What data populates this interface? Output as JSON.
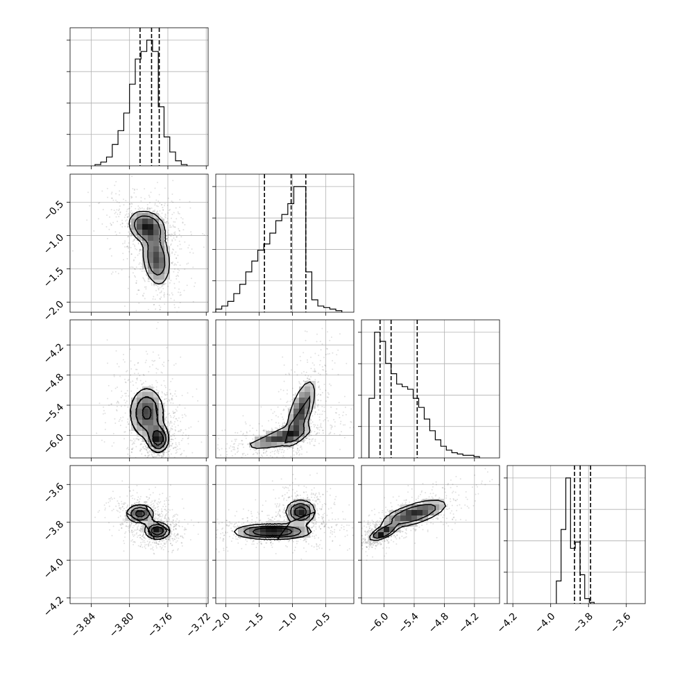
{
  "chart_data": {
    "type": "corner",
    "parameters": [
      {
        "ticks": [
          -3.84,
          -3.8,
          -3.76,
          -3.72
        ],
        "tick_labels": [
          "−3.84",
          "−3.80",
          "−3.76",
          "−3.72"
        ],
        "range": [
          -3.862,
          -3.718
        ],
        "hist": {
          "edges_start": -3.836,
          "bin_width": 0.006,
          "counts": [
            0.01,
            0.03,
            0.07,
            0.17,
            0.28,
            0.42,
            0.65,
            0.85,
            0.91,
            1.0,
            0.91,
            0.47,
            0.23,
            0.11,
            0.04,
            0.01
          ]
        },
        "quantiles": [
          -3.789,
          -3.777,
          -3.769
        ]
      },
      {
        "ticks": [
          -2.0,
          -1.5,
          -1.0,
          -0.5
        ],
        "tick_labels": [
          "−2.0",
          "−1.5",
          "−1.0",
          "−0.5"
        ],
        "range": [
          -2.15,
          -0.08
        ],
        "hist": {
          "edges_start": -2.15,
          "bin_width": 0.09,
          "counts": [
            0.02,
            0.04,
            0.07,
            0.12,
            0.18,
            0.26,
            0.33,
            0.4,
            0.44,
            0.51,
            0.59,
            0.63,
            0.7,
            0.81,
            0.81,
            0.26,
            0.08,
            0.04,
            0.03,
            0.02,
            0.01
          ]
        },
        "quantiles": [
          -1.42,
          -1.02,
          -0.8
        ]
      },
      {
        "ticks": [
          -6.0,
          -5.4,
          -4.8,
          -4.2
        ],
        "tick_labels": [
          "−6.0",
          "−5.4",
          "−4.8",
          "−4.2"
        ],
        "range": [
          -6.45,
          -3.7
        ],
        "hist": {
          "edges_start": -6.3,
          "bin_width": 0.11,
          "counts": [
            0.46,
            0.97,
            0.9,
            0.73,
            0.65,
            0.57,
            0.55,
            0.53,
            0.46,
            0.39,
            0.3,
            0.21,
            0.14,
            0.09,
            0.06,
            0.04,
            0.03,
            0.02,
            0.02,
            0.01
          ]
        },
        "quantiles": [
          -6.08,
          -5.86,
          -5.34
        ]
      },
      {
        "ticks": [
          -4.2,
          -4.0,
          -3.8,
          -3.6
        ],
        "tick_labels": [
          "−4.2",
          "−4.0",
          "−3.8",
          "−3.6"
        ],
        "range": [
          -4.23,
          -3.5
        ],
        "hist": {
          "edges_start": -3.97,
          "bin_width": 0.025,
          "counts": [
            0.18,
            0.59,
            1.0,
            0.44,
            0.49,
            0.23,
            0.04,
            0.01
          ]
        },
        "quantiles": [
          -3.874,
          -3.844,
          -3.789
        ]
      }
    ],
    "pairs": [
      {
        "row": 1,
        "col": 0,
        "mode": "bimodal-vert",
        "peaks": [
          {
            "x": -3.782,
            "y": -0.87,
            "sx": 0.01,
            "sy": 0.13,
            "w": 0.55
          },
          {
            "x": -3.772,
            "y": -1.35,
            "sx": 0.008,
            "sy": 0.22,
            "w": 0.45
          }
        ]
      },
      {
        "row": 2,
        "col": 0,
        "mode": "two",
        "peaks": [
          {
            "x": -3.77,
            "y": -6.07,
            "sx": 0.006,
            "sy": 0.15,
            "w": 0.55
          },
          {
            "x": -3.782,
            "y": -5.55,
            "sx": 0.01,
            "sy": 0.28,
            "w": 0.45
          }
        ]
      },
      {
        "row": 2,
        "col": 1,
        "mode": "diag",
        "peaks": [
          {
            "x": -1.2,
            "y": -6.05,
            "sx": 0.25,
            "sy": 0.12,
            "w": 0.5
          },
          {
            "x": -0.88,
            "y": -5.55,
            "sx": 0.12,
            "sy": 0.35,
            "w": 0.5
          }
        ]
      },
      {
        "row": 3,
        "col": 0,
        "mode": "two",
        "peaks": [
          {
            "x": -3.771,
            "y": -3.845,
            "sx": 0.007,
            "sy": 0.025,
            "w": 0.55
          },
          {
            "x": -3.789,
            "y": -3.755,
            "sx": 0.008,
            "sy": 0.028,
            "w": 0.45
          }
        ]
      },
      {
        "row": 3,
        "col": 1,
        "mode": "two",
        "peaks": [
          {
            "x": -1.3,
            "y": -3.85,
            "sx": 0.3,
            "sy": 0.022,
            "w": 0.55
          },
          {
            "x": -0.88,
            "y": -3.745,
            "sx": 0.12,
            "sy": 0.035,
            "w": 0.45
          }
        ]
      },
      {
        "row": 3,
        "col": 2,
        "mode": "diag",
        "peaks": [
          {
            "x": -6.02,
            "y": -3.855,
            "sx": 0.14,
            "sy": 0.022,
            "w": 0.55
          },
          {
            "x": -5.4,
            "y": -3.755,
            "sx": 0.35,
            "sy": 0.04,
            "w": 0.45
          }
        ]
      }
    ],
    "grid": true,
    "colors": {
      "line": "#000000",
      "grid": "#b0b0b0",
      "density": "#000000"
    }
  }
}
